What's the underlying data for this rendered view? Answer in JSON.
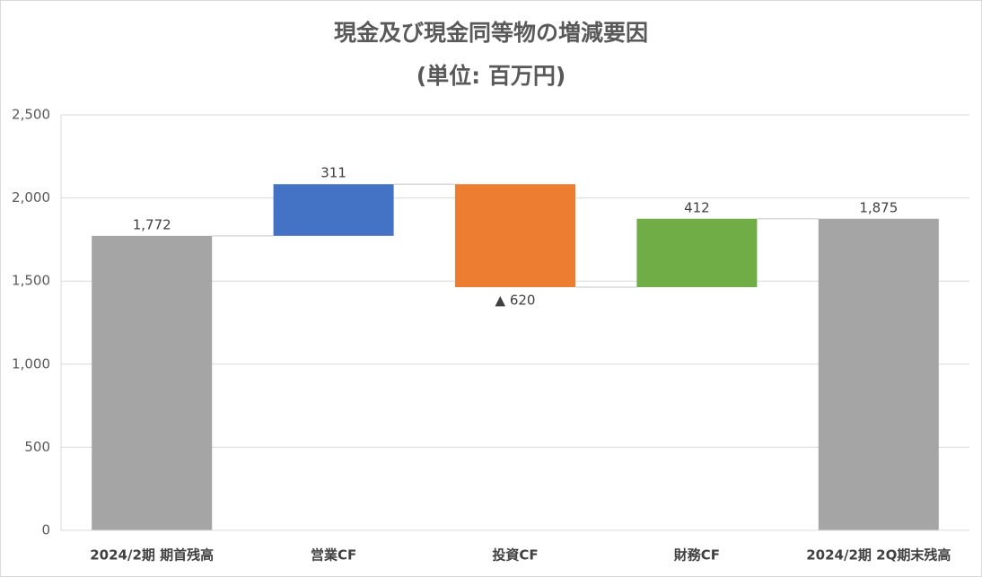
{
  "chart_data": {
    "type": "waterfall",
    "title": "現金及び現金同等物の増減要因",
    "subtitle": "(単位: 百万円)",
    "categories": [
      "2024/2期 期首残高",
      "営業CF",
      "投資CF",
      "財務CF",
      "2024/2期 2Q期末残高"
    ],
    "values": [
      1772,
      311,
      -620,
      412,
      1875
    ],
    "value_labels": [
      "1,772",
      "311",
      "▲ 620",
      "412",
      "1,875"
    ],
    "is_total": [
      true,
      false,
      false,
      false,
      true
    ],
    "colors": [
      "#a5a5a5",
      "#4472c4",
      "#ed7d31",
      "#70ad47",
      "#a5a5a5"
    ],
    "ylim": [
      0,
      2500
    ],
    "yticks": [
      0,
      500,
      {
        "value": 1000,
        "label": "1,000"
      },
      {
        "value": 1500,
        "label": "1,500"
      },
      {
        "value": 2000,
        "label": "2,000"
      },
      {
        "value": 2500,
        "label": "2,500"
      }
    ],
    "grid": true
  }
}
